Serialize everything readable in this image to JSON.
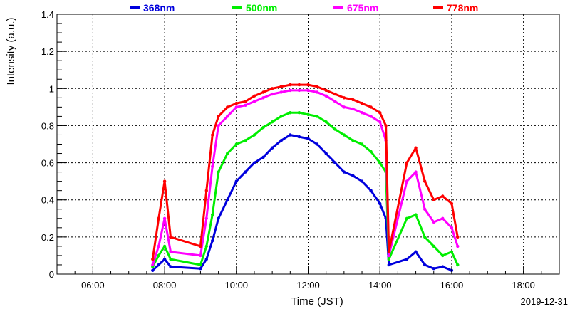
{
  "chart_data": {
    "type": "scatter",
    "title": "",
    "xlabel": "Time (JST)",
    "ylabel": "Intensity (a.u.)",
    "date_label": "2019-12-31",
    "xlim": [
      "05:00",
      "19:00"
    ],
    "ylim": [
      0,
      1.4
    ],
    "grid": true,
    "legend_position": "top",
    "x_ticks": [
      "06:00",
      "08:00",
      "10:00",
      "12:00",
      "14:00",
      "16:00",
      "18:00"
    ],
    "y_ticks": [
      "0",
      "0.2",
      "0.4",
      "0.6",
      "0.8",
      "1",
      "1.2",
      "1.4"
    ],
    "series": [
      {
        "name": "368nm",
        "color": "#0000dd",
        "x": [
          "07:40",
          "07:50",
          "08:00",
          "08:10",
          "09:00",
          "09:10",
          "09:20",
          "09:30",
          "09:45",
          "10:00",
          "10:15",
          "10:30",
          "10:45",
          "11:00",
          "11:15",
          "11:30",
          "11:45",
          "12:00",
          "12:15",
          "12:30",
          "12:45",
          "13:00",
          "13:15",
          "13:30",
          "13:45",
          "14:00",
          "14:10",
          "14:15",
          "14:45",
          "15:00",
          "15:15",
          "15:30",
          "15:45",
          "16:00"
        ],
        "values": [
          0.02,
          0.05,
          0.08,
          0.04,
          0.03,
          0.08,
          0.18,
          0.3,
          0.4,
          0.5,
          0.55,
          0.6,
          0.63,
          0.68,
          0.72,
          0.75,
          0.74,
          0.73,
          0.7,
          0.65,
          0.6,
          0.55,
          0.53,
          0.5,
          0.45,
          0.38,
          0.3,
          0.05,
          0.08,
          0.12,
          0.05,
          0.03,
          0.04,
          0.02
        ]
      },
      {
        "name": "500nm",
        "color": "#00ee00",
        "x": [
          "07:40",
          "07:50",
          "08:00",
          "08:10",
          "09:00",
          "09:10",
          "09:20",
          "09:30",
          "09:45",
          "10:00",
          "10:15",
          "10:30",
          "10:45",
          "11:00",
          "11:15",
          "11:30",
          "11:45",
          "12:00",
          "12:15",
          "12:30",
          "12:45",
          "13:00",
          "13:15",
          "13:30",
          "13:45",
          "14:00",
          "14:10",
          "14:15",
          "14:45",
          "15:00",
          "15:15",
          "15:30",
          "15:45",
          "16:00",
          "16:10"
        ],
        "values": [
          0.04,
          0.1,
          0.15,
          0.08,
          0.05,
          0.15,
          0.32,
          0.55,
          0.65,
          0.7,
          0.72,
          0.75,
          0.79,
          0.82,
          0.85,
          0.87,
          0.87,
          0.86,
          0.85,
          0.82,
          0.78,
          0.75,
          0.72,
          0.7,
          0.66,
          0.6,
          0.55,
          0.08,
          0.3,
          0.32,
          0.2,
          0.15,
          0.1,
          0.12,
          0.05
        ]
      },
      {
        "name": "675nm",
        "color": "#ff00ff",
        "x": [
          "07:40",
          "07:50",
          "08:00",
          "08:10",
          "09:00",
          "09:10",
          "09:20",
          "09:30",
          "09:45",
          "10:00",
          "10:15",
          "10:30",
          "10:45",
          "11:00",
          "11:15",
          "11:30",
          "11:45",
          "12:00",
          "12:15",
          "12:30",
          "12:45",
          "13:00",
          "13:15",
          "13:30",
          "13:45",
          "14:00",
          "14:10",
          "14:15",
          "14:45",
          "15:00",
          "15:15",
          "15:30",
          "15:45",
          "16:00",
          "16:10"
        ],
        "values": [
          0.05,
          0.15,
          0.3,
          0.12,
          0.1,
          0.3,
          0.58,
          0.8,
          0.85,
          0.9,
          0.91,
          0.93,
          0.95,
          0.97,
          0.98,
          0.99,
          0.99,
          0.99,
          0.98,
          0.96,
          0.93,
          0.9,
          0.89,
          0.87,
          0.85,
          0.82,
          0.72,
          0.1,
          0.5,
          0.55,
          0.35,
          0.28,
          0.3,
          0.25,
          0.15
        ]
      },
      {
        "name": "778nm",
        "color": "#ff0000",
        "x": [
          "07:40",
          "07:50",
          "08:00",
          "08:10",
          "09:00",
          "09:10",
          "09:20",
          "09:30",
          "09:45",
          "10:00",
          "10:15",
          "10:30",
          "10:45",
          "11:00",
          "11:15",
          "11:30",
          "11:45",
          "12:00",
          "12:15",
          "12:30",
          "12:45",
          "13:00",
          "13:15",
          "13:30",
          "13:45",
          "14:00",
          "14:10",
          "14:15",
          "14:45",
          "15:00",
          "15:15",
          "15:30",
          "15:45",
          "16:00",
          "16:10"
        ],
        "values": [
          0.08,
          0.3,
          0.5,
          0.2,
          0.15,
          0.45,
          0.75,
          0.85,
          0.9,
          0.92,
          0.93,
          0.96,
          0.98,
          1.0,
          1.01,
          1.02,
          1.02,
          1.02,
          1.01,
          0.99,
          0.97,
          0.95,
          0.94,
          0.92,
          0.9,
          0.87,
          0.8,
          0.12,
          0.6,
          0.68,
          0.5,
          0.4,
          0.42,
          0.38,
          0.2
        ]
      }
    ]
  }
}
